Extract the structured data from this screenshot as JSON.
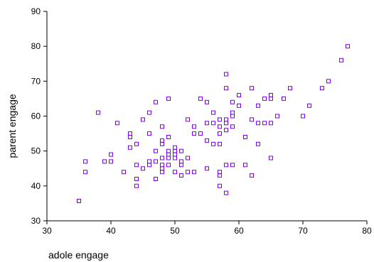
{
  "chart_data": {
    "type": "scatter",
    "title": "",
    "xlabel": "adole engage",
    "ylabel": "parent engage",
    "xlim": [
      30,
      80
    ],
    "ylim": [
      30,
      90
    ],
    "xticks": [
      30,
      40,
      50,
      60,
      70,
      80
    ],
    "yticks": [
      30,
      40,
      50,
      60,
      70,
      80,
      90
    ],
    "xtick_labels": [
      "30",
      "40",
      "50",
      "60",
      "70",
      "80"
    ],
    "ytick_labels": [
      "30",
      "40",
      "50",
      "60",
      "70",
      "80",
      "90"
    ],
    "grid": false,
    "legend": "none",
    "marker": "open-square",
    "marker_color": "#7a00e6",
    "points": [
      [
        35,
        35.7
      ],
      [
        36,
        47
      ],
      [
        36,
        44
      ],
      [
        38,
        61
      ],
      [
        39,
        47
      ],
      [
        40,
        49
      ],
      [
        40,
        47
      ],
      [
        41,
        58
      ],
      [
        42,
        44
      ],
      [
        43,
        55
      ],
      [
        43,
        54
      ],
      [
        43,
        51
      ],
      [
        44,
        52
      ],
      [
        44,
        46
      ],
      [
        44,
        42
      ],
      [
        44,
        40
      ],
      [
        45,
        59
      ],
      [
        45,
        45
      ],
      [
        46,
        61
      ],
      [
        46,
        55
      ],
      [
        46,
        47
      ],
      [
        46,
        46
      ],
      [
        47,
        64
      ],
      [
        47,
        50
      ],
      [
        47,
        47
      ],
      [
        47,
        42
      ],
      [
        48,
        57
      ],
      [
        48,
        53
      ],
      [
        48,
        52
      ],
      [
        48,
        48
      ],
      [
        48,
        46
      ],
      [
        48,
        45
      ],
      [
        48,
        44
      ],
      [
        49,
        65
      ],
      [
        49,
        54
      ],
      [
        49,
        50
      ],
      [
        49,
        49
      ],
      [
        49,
        48
      ],
      [
        49,
        46
      ],
      [
        50,
        51
      ],
      [
        50,
        50
      ],
      [
        50,
        49
      ],
      [
        50,
        48
      ],
      [
        50,
        44
      ],
      [
        51,
        50
      ],
      [
        51,
        47
      ],
      [
        51,
        46
      ],
      [
        51,
        43
      ],
      [
        52,
        59
      ],
      [
        52,
        48
      ],
      [
        52,
        44
      ],
      [
        53,
        57
      ],
      [
        53,
        55
      ],
      [
        53,
        44
      ],
      [
        54,
        65
      ],
      [
        54,
        55
      ],
      [
        55,
        64
      ],
      [
        55,
        58
      ],
      [
        55,
        53
      ],
      [
        55,
        45
      ],
      [
        56,
        61
      ],
      [
        56,
        58
      ],
      [
        56,
        52
      ],
      [
        57,
        59
      ],
      [
        57,
        57
      ],
      [
        57,
        55
      ],
      [
        57,
        52
      ],
      [
        57,
        44
      ],
      [
        57,
        43
      ],
      [
        57,
        40
      ],
      [
        58,
        72
      ],
      [
        58,
        68
      ],
      [
        58,
        59
      ],
      [
        58,
        58
      ],
      [
        58,
        56
      ],
      [
        58,
        46
      ],
      [
        58,
        38
      ],
      [
        59,
        64
      ],
      [
        59,
        61
      ],
      [
        59,
        60
      ],
      [
        59,
        57
      ],
      [
        59,
        46
      ],
      [
        60,
        66
      ],
      [
        60,
        63
      ],
      [
        61,
        54
      ],
      [
        61,
        46
      ],
      [
        62,
        68
      ],
      [
        62,
        59
      ],
      [
        62,
        43
      ],
      [
        63,
        63
      ],
      [
        63,
        58
      ],
      [
        63,
        52
      ],
      [
        64,
        65
      ],
      [
        64,
        58
      ],
      [
        65,
        66
      ],
      [
        65,
        65
      ],
      [
        65,
        58
      ],
      [
        65,
        48
      ],
      [
        66,
        60
      ],
      [
        67,
        65
      ],
      [
        68,
        68
      ],
      [
        70,
        60
      ],
      [
        71,
        63
      ],
      [
        73,
        68
      ],
      [
        74,
        70
      ],
      [
        76,
        76
      ],
      [
        77,
        80
      ]
    ]
  }
}
